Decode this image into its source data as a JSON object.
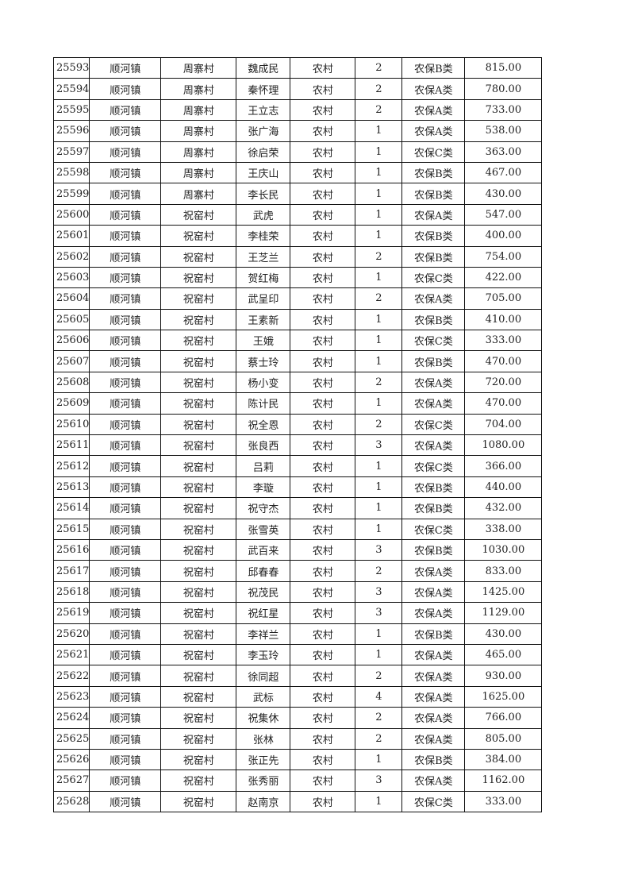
{
  "table": {
    "rows": [
      [
        "25593",
        "顺河镇",
        "周寨村",
        "魏成民",
        "农村",
        "2",
        "农保B类",
        "815.00"
      ],
      [
        "25594",
        "顺河镇",
        "周寨村",
        "秦怀理",
        "农村",
        "2",
        "农保A类",
        "780.00"
      ],
      [
        "25595",
        "顺河镇",
        "周寨村",
        "王立志",
        "农村",
        "2",
        "农保A类",
        "733.00"
      ],
      [
        "25596",
        "顺河镇",
        "周寨村",
        "张广海",
        "农村",
        "1",
        "农保A类",
        "538.00"
      ],
      [
        "25597",
        "顺河镇",
        "周寨村",
        "徐启荣",
        "农村",
        "1",
        "农保C类",
        "363.00"
      ],
      [
        "25598",
        "顺河镇",
        "周寨村",
        "王庆山",
        "农村",
        "1",
        "农保B类",
        "467.00"
      ],
      [
        "25599",
        "顺河镇",
        "周寨村",
        "李长民",
        "农村",
        "1",
        "农保B类",
        "430.00"
      ],
      [
        "25600",
        "顺河镇",
        "祝窑村",
        "武虎",
        "农村",
        "1",
        "农保A类",
        "547.00"
      ],
      [
        "25601",
        "顺河镇",
        "祝窑村",
        "李桂荣",
        "农村",
        "1",
        "农保B类",
        "400.00"
      ],
      [
        "25602",
        "顺河镇",
        "祝窑村",
        "王芝兰",
        "农村",
        "2",
        "农保B类",
        "754.00"
      ],
      [
        "25603",
        "顺河镇",
        "祝窑村",
        "贺红梅",
        "农村",
        "1",
        "农保C类",
        "422.00"
      ],
      [
        "25604",
        "顺河镇",
        "祝窑村",
        "武呈印",
        "农村",
        "2",
        "农保A类",
        "705.00"
      ],
      [
        "25605",
        "顺河镇",
        "祝窑村",
        "王素新",
        "农村",
        "1",
        "农保B类",
        "410.00"
      ],
      [
        "25606",
        "顺河镇",
        "祝窑村",
        "王娥",
        "农村",
        "1",
        "农保C类",
        "333.00"
      ],
      [
        "25607",
        "顺河镇",
        "祝窑村",
        "蔡士玲",
        "农村",
        "1",
        "农保B类",
        "470.00"
      ],
      [
        "25608",
        "顺河镇",
        "祝窑村",
        "杨小变",
        "农村",
        "2",
        "农保A类",
        "720.00"
      ],
      [
        "25609",
        "顺河镇",
        "祝窑村",
        "陈计民",
        "农村",
        "1",
        "农保A类",
        "470.00"
      ],
      [
        "25610",
        "顺河镇",
        "祝窑村",
        "祝全恩",
        "农村",
        "2",
        "农保C类",
        "704.00"
      ],
      [
        "25611",
        "顺河镇",
        "祝窑村",
        "张良西",
        "农村",
        "3",
        "农保A类",
        "1080.00"
      ],
      [
        "25612",
        "顺河镇",
        "祝窑村",
        "吕莉",
        "农村",
        "1",
        "农保C类",
        "366.00"
      ],
      [
        "25613",
        "顺河镇",
        "祝窑村",
        "李璇",
        "农村",
        "1",
        "农保B类",
        "440.00"
      ],
      [
        "25614",
        "顺河镇",
        "祝窑村",
        "祝守杰",
        "农村",
        "1",
        "农保B类",
        "432.00"
      ],
      [
        "25615",
        "顺河镇",
        "祝窑村",
        "张雪英",
        "农村",
        "1",
        "农保C类",
        "338.00"
      ],
      [
        "25616",
        "顺河镇",
        "祝窑村",
        "武百来",
        "农村",
        "3",
        "农保B类",
        "1030.00"
      ],
      [
        "25617",
        "顺河镇",
        "祝窑村",
        "邱春春",
        "农村",
        "2",
        "农保A类",
        "833.00"
      ],
      [
        "25618",
        "顺河镇",
        "祝窑村",
        "祝茂民",
        "农村",
        "3",
        "农保A类",
        "1425.00"
      ],
      [
        "25619",
        "顺河镇",
        "祝窑村",
        "祝红星",
        "农村",
        "3",
        "农保A类",
        "1129.00"
      ],
      [
        "25620",
        "顺河镇",
        "祝窑村",
        "李祥兰",
        "农村",
        "1",
        "农保B类",
        "430.00"
      ],
      [
        "25621",
        "顺河镇",
        "祝窑村",
        "李玉玲",
        "农村",
        "1",
        "农保A类",
        "465.00"
      ],
      [
        "25622",
        "顺河镇",
        "祝窑村",
        "徐同超",
        "农村",
        "2",
        "农保A类",
        "930.00"
      ],
      [
        "25623",
        "顺河镇",
        "祝窑村",
        "武标",
        "农村",
        "4",
        "农保A类",
        "1625.00"
      ],
      [
        "25624",
        "顺河镇",
        "祝窑村",
        "祝集休",
        "农村",
        "2",
        "农保A类",
        "766.00"
      ],
      [
        "25625",
        "顺河镇",
        "祝窑村",
        "张林",
        "农村",
        "2",
        "农保A类",
        "805.00"
      ],
      [
        "25626",
        "顺河镇",
        "祝窑村",
        "张正先",
        "农村",
        "1",
        "农保B类",
        "384.00"
      ],
      [
        "25627",
        "顺河镇",
        "祝窑村",
        "张秀丽",
        "农村",
        "3",
        "农保A类",
        "1162.00"
      ],
      [
        "25628",
        "顺河镇",
        "祝窑村",
        "赵南京",
        "农村",
        "1",
        "农保C类",
        "333.00"
      ]
    ]
  }
}
